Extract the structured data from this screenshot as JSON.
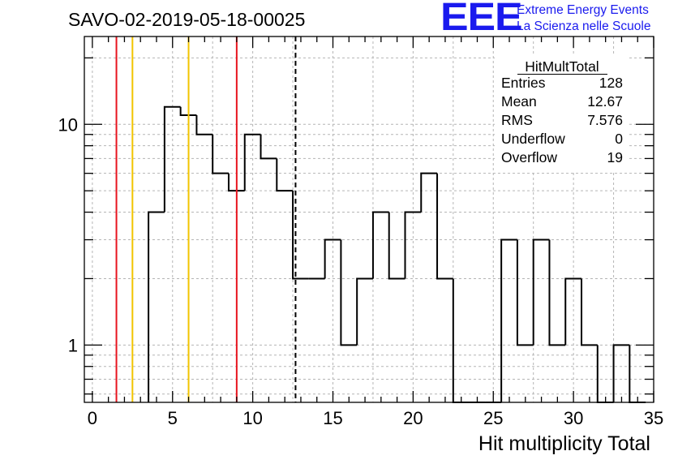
{
  "header": {
    "run_title": "SAVO-02-2019-05-18-00025"
  },
  "logo": {
    "mark": "EEE",
    "line1": "Extreme Energy Events",
    "line2": "La Scienza nelle Scuole",
    "color": "#1a1aee"
  },
  "stats_box": {
    "title": "HitMultTotal",
    "rows": [
      {
        "label": "Entries",
        "value": "128"
      },
      {
        "label": "Mean",
        "value": "12.67"
      },
      {
        "label": "RMS",
        "value": "7.576"
      },
      {
        "label": "Underflow",
        "value": "0"
      },
      {
        "label": "Overflow",
        "value": "19"
      }
    ]
  },
  "chart_data": {
    "type": "bar",
    "histogram": true,
    "xlabel": "Hit multiplicity Total",
    "ylabel": "",
    "xlim": [
      -0.5,
      35
    ],
    "ylim": [
      0.55,
      25
    ],
    "log_y": true,
    "grid": true,
    "x_ticks": [
      0,
      5,
      10,
      15,
      20,
      25,
      30,
      35
    ],
    "y_ticks": [
      1,
      10
    ],
    "bin_width": 1,
    "bin_starts": [
      3.5,
      4.5,
      5.5,
      6.5,
      7.5,
      8.5,
      9.5,
      10.5,
      11.5,
      12.5,
      13.5,
      14.5,
      15.5,
      16.5,
      17.5,
      18.5,
      19.5,
      20.5,
      21.5,
      22.5,
      23.5,
      24.5,
      25.5,
      26.5,
      27.5,
      28.5,
      29.5,
      30.5,
      31.5,
      32.5,
      33.5
    ],
    "values": [
      4,
      12,
      11,
      9,
      6,
      5,
      9,
      7,
      5,
      2,
      2,
      3,
      1,
      2,
      4,
      2,
      4,
      6,
      2,
      0,
      0,
      0,
      3,
      1,
      3,
      1,
      2,
      1,
      0,
      1,
      0
    ],
    "vertical_lines": [
      {
        "x": 1.5,
        "color": "#e8141e",
        "style": "solid"
      },
      {
        "x": 2.5,
        "color": "#f2c400",
        "style": "solid"
      },
      {
        "x": 6,
        "color": "#f2c400",
        "style": "solid"
      },
      {
        "x": 9,
        "color": "#e8141e",
        "style": "solid"
      },
      {
        "x": 12.67,
        "color": "#000000",
        "style": "dashed"
      }
    ],
    "legend": "top-right"
  }
}
